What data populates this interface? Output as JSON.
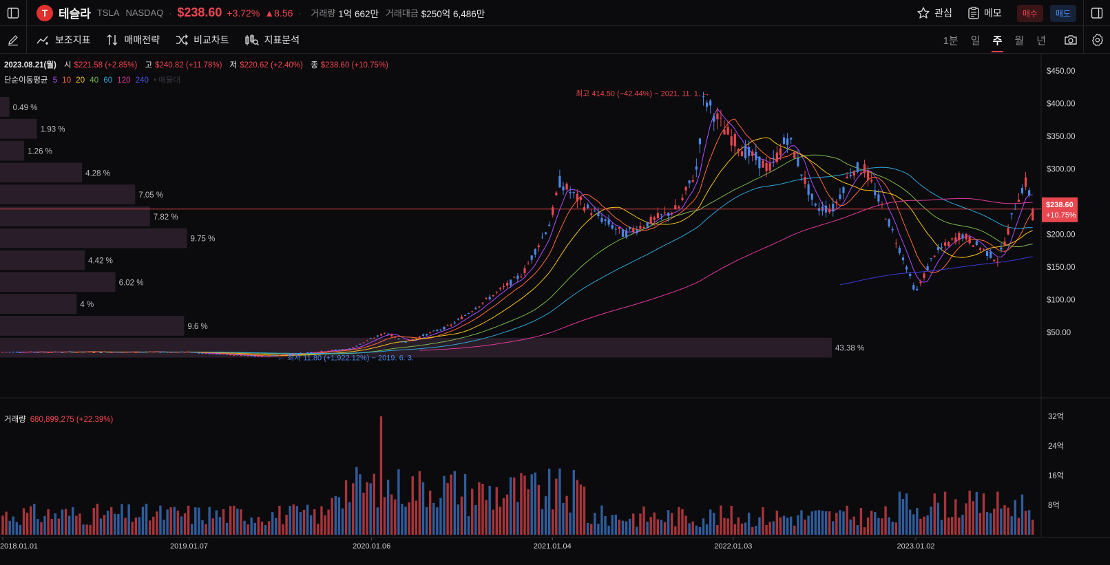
{
  "header": {
    "logo_letter": "T",
    "name": "테슬라",
    "ticker": "TSLA",
    "exchange": "NASDAQ",
    "price": "$238.60",
    "change_pct": "+3.72%",
    "change_abs": "▲8.56",
    "volume_label": "거래량",
    "volume_value": "1억 662만",
    "amount_label": "거래대금",
    "amount_value": "$250억 6,486만",
    "watch_label": "관심",
    "memo_label": "메모",
    "buy_label": "매수",
    "sell_label": "매도"
  },
  "toolbar": {
    "indicator": "보조지표",
    "strategy": "매매전략",
    "compare": "비교차트",
    "analysis": "지표분석",
    "periods": [
      "1분",
      "일",
      "주",
      "월",
      "년"
    ],
    "active_period": "주"
  },
  "ohlc": {
    "date": "2023.08.21(월)",
    "open_label": "시",
    "open": "$221.58 (+2.85%)",
    "high_label": "고",
    "high": "$240.82 (+11.78%)",
    "low_label": "저",
    "low": "$220.62 (+2.40%)",
    "close_label": "종",
    "close": "$238.60 (+10.75%)"
  },
  "ma_legend": {
    "label": "단순이동평균",
    "periods": [
      "5",
      "10",
      "20",
      "40",
      "60",
      "120",
      "240"
    ],
    "colors": [
      "#b04cff",
      "#ff6a3a",
      "#f5c518",
      "#7ab84b",
      "#2fa8d8",
      "#e03a9a",
      "#3a3ad8"
    ],
    "extra": "• 매물대"
  },
  "price_axis": {
    "ticks": [
      "$450.00",
      "$400.00",
      "$350.00",
      "$300.00",
      "$250.00",
      "$200.00",
      "$150.00",
      "$100.00",
      "$50.00"
    ],
    "current_price": "$238.60",
    "current_change": "+10.75%"
  },
  "volume_axis": {
    "ticks": [
      "32억",
      "24억",
      "16억",
      "8억"
    ]
  },
  "x_axis": {
    "ticks": [
      "2018.01.01",
      "2019.01.07",
      "2020.01.06",
      "2021.01.04",
      "2022.01.03",
      "2023.01.02"
    ]
  },
  "annotations": {
    "high": "최고 414.50 (−42.44%) − 2021. 11. 1. →",
    "low": "← 최저 11.80 (+1,922.12%) − 2019. 6. 3."
  },
  "volume_legend": {
    "label": "거래량",
    "value": "680,899,275 (+22.39%)"
  },
  "chart_data": {
    "type": "line",
    "title": "",
    "xlabel": "",
    "ylabel": "",
    "ylim": [
      0,
      460
    ],
    "x": [
      "2018.01",
      "2018.07",
      "2019.01",
      "2019.06",
      "2020.01",
      "2020.03",
      "2020.07",
      "2020.09",
      "2021.01",
      "2021.03",
      "2021.06",
      "2021.11",
      "2022.01",
      "2022.04",
      "2022.06",
      "2022.09",
      "2022.12",
      "2023.01",
      "2023.03",
      "2023.06",
      "2023.08"
    ],
    "series": [
      {
        "name": "",
        "values": [
          20,
          20,
          20,
          15,
          30,
          40,
          100,
          140,
          280,
          220,
          200,
          410,
          360,
          330,
          230,
          300,
          130,
          110,
          200,
          270,
          239
        ]
      }
    ],
    "volume_profile": [
      {
        "percent": "0.49 %",
        "value": 0.49
      },
      {
        "percent": "1.93 %",
        "value": 1.93
      },
      {
        "percent": "1.26 %",
        "value": 1.26
      },
      {
        "percent": "4.28 %",
        "value": 4.28
      },
      {
        "percent": "7.05 %",
        "value": 7.05
      },
      {
        "percent": "7.82 %",
        "value": 7.82
      },
      {
        "percent": "9.75 %",
        "value": 9.75
      },
      {
        "percent": "4.42 %",
        "value": 4.42
      },
      {
        "percent": "6.02 %",
        "value": 6.02
      },
      {
        "percent": "4 %",
        "value": 4
      },
      {
        "percent": "9.6 %",
        "value": 9.6
      },
      {
        "percent": "43.38 %",
        "value": 43.38
      }
    ]
  }
}
